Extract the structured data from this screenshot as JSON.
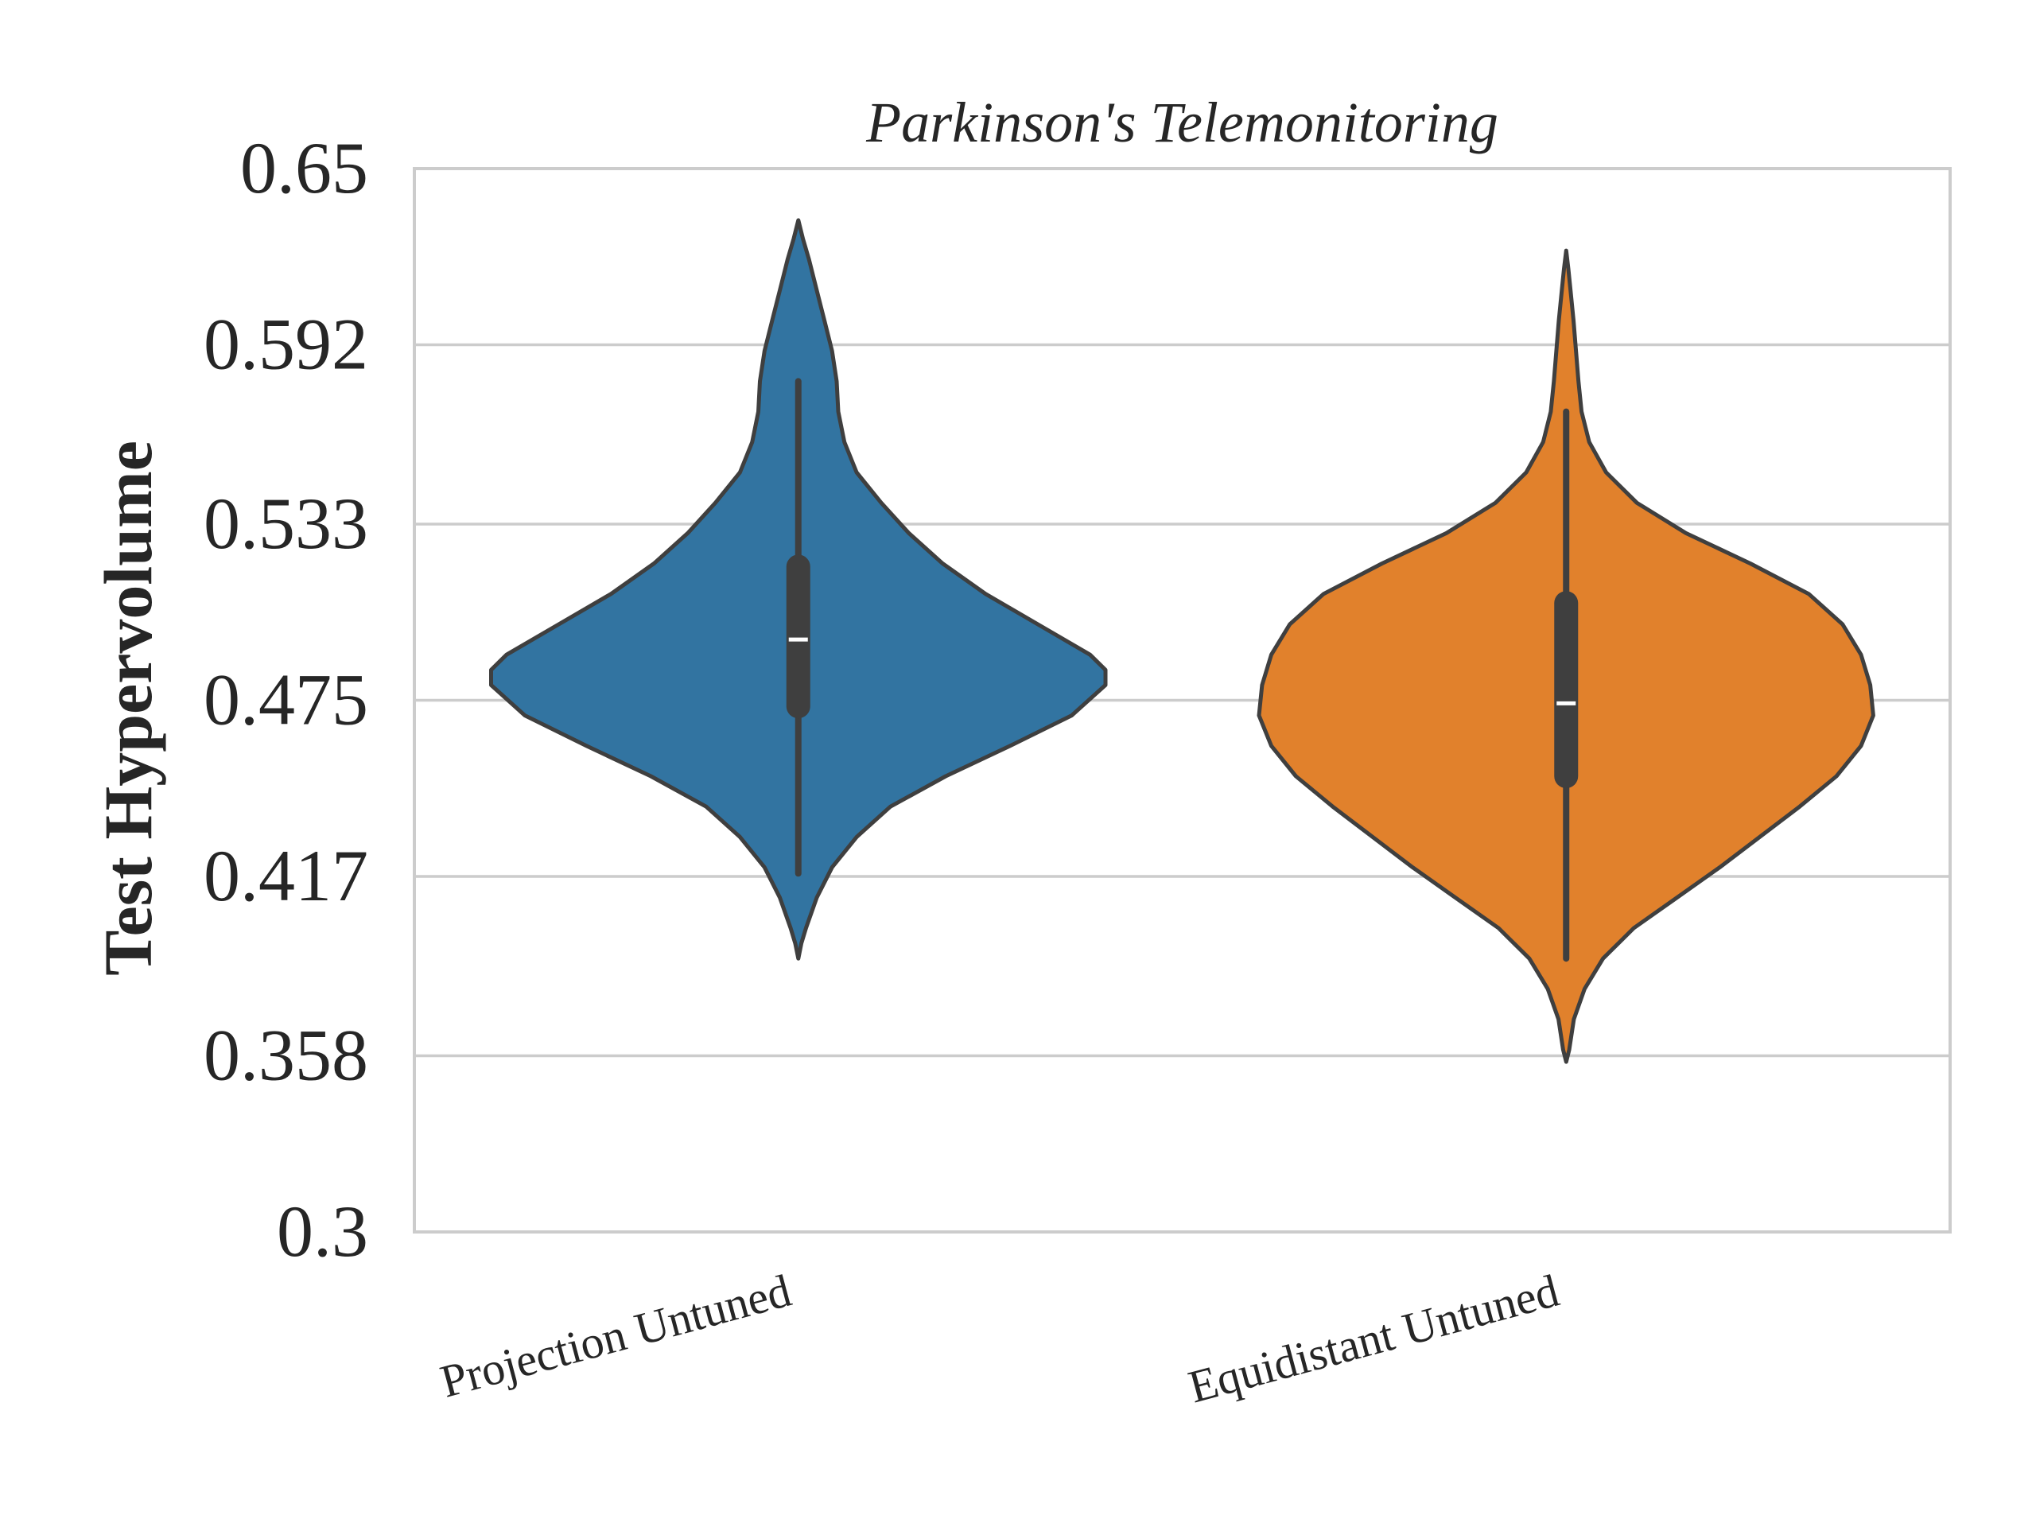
{
  "chart_data": {
    "type": "violin",
    "title": "Parkinson's Telemonitoring",
    "xlabel": "",
    "ylabel": "Test Hypervolume",
    "ylim": [
      0.3,
      0.65
    ],
    "yticks": [
      "0.3",
      "0.358",
      "0.417",
      "0.475",
      "0.533",
      "0.592",
      "0.65"
    ],
    "grid": "horizontal",
    "categories": [
      "Projection Untuned",
      "Equidistant Untuned"
    ],
    "series": [
      {
        "category": "Projection Untuned",
        "color": "#3274a1",
        "min": 0.418,
        "q1": 0.473,
        "median": 0.495,
        "q3": 0.519,
        "max": 0.58,
        "kde_range": [
          0.39,
          0.633
        ],
        "density": [
          [
            0.39,
            0.0
          ],
          [
            0.395,
            0.01
          ],
          [
            0.4,
            0.025
          ],
          [
            0.41,
            0.06
          ],
          [
            0.42,
            0.11
          ],
          [
            0.43,
            0.19
          ],
          [
            0.44,
            0.3
          ],
          [
            0.45,
            0.48
          ],
          [
            0.46,
            0.69
          ],
          [
            0.47,
            0.89
          ],
          [
            0.48,
            1.0
          ],
          [
            0.485,
            1.0
          ],
          [
            0.49,
            0.95
          ],
          [
            0.5,
            0.78
          ],
          [
            0.51,
            0.61
          ],
          [
            0.52,
            0.47
          ],
          [
            0.53,
            0.36
          ],
          [
            0.54,
            0.27
          ],
          [
            0.55,
            0.19
          ],
          [
            0.56,
            0.15
          ],
          [
            0.57,
            0.13
          ],
          [
            0.58,
            0.125
          ],
          [
            0.59,
            0.11
          ],
          [
            0.6,
            0.085
          ],
          [
            0.61,
            0.06
          ],
          [
            0.62,
            0.035
          ],
          [
            0.627,
            0.015
          ],
          [
            0.633,
            0.0
          ]
        ]
      },
      {
        "category": "Equidistant Untuned",
        "color": "#e1812c",
        "min": 0.39,
        "q1": 0.45,
        "median": 0.474,
        "q3": 0.507,
        "max": 0.57,
        "kde_range": [
          0.356,
          0.623
        ],
        "density": [
          [
            0.356,
            0.0
          ],
          [
            0.36,
            0.01
          ],
          [
            0.37,
            0.025
          ],
          [
            0.38,
            0.06
          ],
          [
            0.39,
            0.12
          ],
          [
            0.4,
            0.22
          ],
          [
            0.41,
            0.36
          ],
          [
            0.42,
            0.5
          ],
          [
            0.43,
            0.63
          ],
          [
            0.44,
            0.76
          ],
          [
            0.45,
            0.88
          ],
          [
            0.46,
            0.96
          ],
          [
            0.47,
            1.0
          ],
          [
            0.48,
            0.99
          ],
          [
            0.49,
            0.96
          ],
          [
            0.5,
            0.9
          ],
          [
            0.51,
            0.79
          ],
          [
            0.52,
            0.6
          ],
          [
            0.53,
            0.39
          ],
          [
            0.54,
            0.23
          ],
          [
            0.55,
            0.13
          ],
          [
            0.56,
            0.075
          ],
          [
            0.57,
            0.05
          ],
          [
            0.58,
            0.04
          ],
          [
            0.59,
            0.032
          ],
          [
            0.6,
            0.024
          ],
          [
            0.61,
            0.014
          ],
          [
            0.617,
            0.007
          ],
          [
            0.623,
            0.0
          ]
        ]
      }
    ]
  }
}
